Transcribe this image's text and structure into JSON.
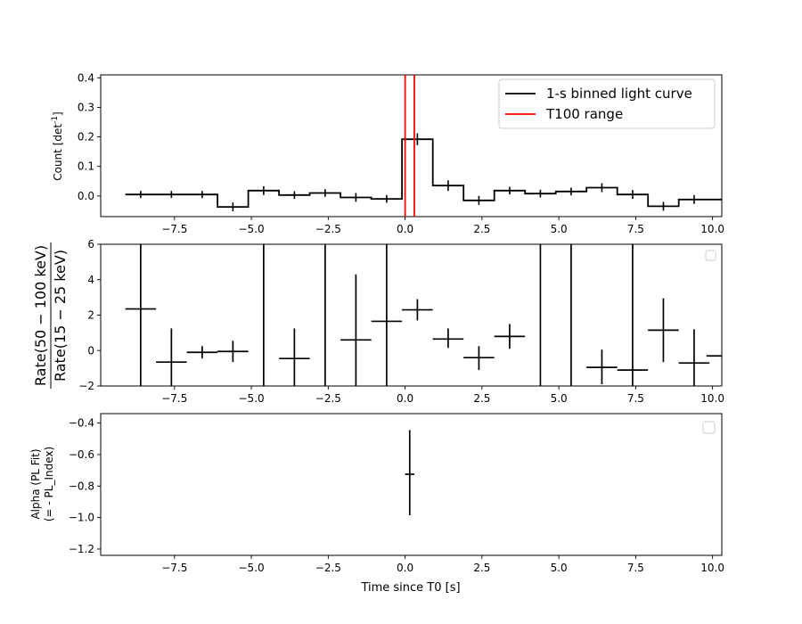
{
  "chart_data": [
    {
      "type": "line",
      "panel": "top",
      "ylabel": "Count [det",
      "ylabel_sup": "-1",
      "ylabel_end": "]",
      "xlim": [
        -9.9,
        10.3
      ],
      "ylim": [
        -0.07,
        0.41
      ],
      "xticks": [
        -7.5,
        -5.0,
        -2.5,
        0.0,
        2.5,
        5.0,
        7.5,
        10.0
      ],
      "xtick_labels": [
        "−7.5",
        "−5.0",
        "−2.5",
        "0.0",
        "2.5",
        "5.0",
        "7.5",
        "10.0"
      ],
      "yticks": [
        0.0,
        0.1,
        0.2,
        0.3,
        0.4
      ],
      "ytick_labels": [
        "0.0",
        "0.1",
        "0.2",
        "0.3",
        "0.4"
      ],
      "legend_position": "top-right",
      "series": [
        {
          "name": "1-s binned light curve",
          "color": "#000000",
          "bin_edges": [
            -9.1,
            -8.1,
            -7.1,
            -6.1,
            -5.1,
            -4.1,
            -3.1,
            -2.1,
            -1.1,
            -0.1,
            0.9,
            1.9,
            2.9,
            3.9,
            4.9,
            5.9,
            6.9,
            7.9,
            8.9,
            9.9,
            10.9
          ],
          "values": [
            0.005,
            0.005,
            0.005,
            -0.037,
            0.018,
            0.003,
            0.01,
            -0.005,
            -0.01,
            0.192,
            0.035,
            -0.015,
            0.018,
            0.008,
            0.015,
            0.028,
            0.005,
            -0.035,
            -0.012,
            -0.012
          ],
          "errors": [
            0.012,
            0.012,
            0.012,
            0.015,
            0.015,
            0.013,
            0.013,
            0.015,
            0.013,
            0.02,
            0.018,
            0.015,
            0.013,
            0.013,
            0.013,
            0.015,
            0.015,
            0.015,
            0.015,
            0.015
          ]
        },
        {
          "name": "T100 range",
          "color": "#ff0000",
          "vlines": [
            0.0,
            0.3
          ]
        }
      ]
    },
    {
      "type": "scatter",
      "panel": "middle",
      "ylabel_num": "Rate(50 − 100 keV)",
      "ylabel_den": "Rate(15 − 25 keV)",
      "xlim": [
        -9.9,
        10.3
      ],
      "ylim": [
        -2,
        6
      ],
      "xticks": [
        -7.5,
        -5.0,
        -2.5,
        0.0,
        2.5,
        5.0,
        7.5,
        10.0
      ],
      "xtick_labels": [
        "−7.5",
        "−5.0",
        "−2.5",
        "0.0",
        "2.5",
        "5.0",
        "7.5",
        "10.0"
      ],
      "yticks": [
        -2,
        0,
        2,
        4,
        6
      ],
      "ytick_labels": [
        "−2",
        "0",
        "2",
        "4",
        "6"
      ],
      "points": [
        {
          "x": -8.6,
          "y": 2.35,
          "xerr": 0.5,
          "ylo": -2.0,
          "yhi": 6.0
        },
        {
          "x": -7.6,
          "y": -0.65,
          "xerr": 0.5,
          "ylo": -2.0,
          "yhi": 1.25
        },
        {
          "x": -6.6,
          "y": -0.1,
          "xerr": 0.5,
          "ylo": -0.45,
          "yhi": 0.25
        },
        {
          "x": -5.6,
          "y": -0.05,
          "xerr": 0.5,
          "ylo": -0.65,
          "yhi": 0.55
        },
        {
          "x": -4.6,
          "y": null,
          "xerr": 0,
          "ylo": -2.0,
          "yhi": 6.0
        },
        {
          "x": -3.6,
          "y": -0.45,
          "xerr": 0.5,
          "ylo": -2.0,
          "yhi": 1.25
        },
        {
          "x": -2.6,
          "y": null,
          "xerr": 0,
          "ylo": -2.0,
          "yhi": 6.0
        },
        {
          "x": -1.6,
          "y": 0.6,
          "xerr": 0.5,
          "ylo": -2.0,
          "yhi": 4.3
        },
        {
          "x": -0.6,
          "y": 1.65,
          "xerr": 0.5,
          "ylo": -2.0,
          "yhi": 6.0
        },
        {
          "x": 0.4,
          "y": 2.3,
          "xerr": 0.5,
          "ylo": 1.7,
          "yhi": 2.9
        },
        {
          "x": 1.4,
          "y": 0.65,
          "xerr": 0.5,
          "ylo": 0.15,
          "yhi": 1.25
        },
        {
          "x": 2.4,
          "y": -0.4,
          "xerr": 0.5,
          "ylo": -1.1,
          "yhi": 0.25
        },
        {
          "x": 3.4,
          "y": 0.8,
          "xerr": 0.5,
          "ylo": 0.1,
          "yhi": 1.5
        },
        {
          "x": 4.4,
          "y": null,
          "xerr": 0,
          "ylo": -2.0,
          "yhi": 6.0
        },
        {
          "x": 5.4,
          "y": null,
          "xerr": 0,
          "ylo": -2.0,
          "yhi": 6.0
        },
        {
          "x": 6.4,
          "y": -0.95,
          "xerr": 0.5,
          "ylo": -1.9,
          "yhi": 0.05
        },
        {
          "x": 7.4,
          "y": -1.1,
          "xerr": 0.5,
          "ylo": -2.0,
          "yhi": 6.0
        },
        {
          "x": 8.4,
          "y": 1.15,
          "xerr": 0.5,
          "ylo": -0.65,
          "yhi": 2.95
        },
        {
          "x": 9.4,
          "y": -0.7,
          "xerr": 0.5,
          "ylo": -2.0,
          "yhi": 1.2
        },
        {
          "x": 10.3,
          "y": -0.3,
          "xerr": 0.5,
          "ylo": -0.3,
          "yhi": -0.3
        }
      ]
    },
    {
      "type": "scatter",
      "panel": "bottom",
      "ylabel_line1": "Alpha (PL Fit)",
      "ylabel_line2": "(= - PL_Index)",
      "xlabel": "Time since T0 [s]",
      "xlim": [
        -9.9,
        10.3
      ],
      "ylim": [
        -1.24,
        -0.34
      ],
      "xticks": [
        -7.5,
        -5.0,
        -2.5,
        0.0,
        2.5,
        5.0,
        7.5,
        10.0
      ],
      "xtick_labels": [
        "−7.5",
        "−5.0",
        "−2.5",
        "0.0",
        "2.5",
        "5.0",
        "7.5",
        "10.0"
      ],
      "yticks": [
        -1.2,
        -1.0,
        -0.8,
        -0.6,
        -0.4
      ],
      "ytick_labels": [
        "−1.2",
        "−1.0",
        "−0.8",
        "−0.6",
        "−0.4"
      ],
      "points": [
        {
          "x": 0.15,
          "y": -0.725,
          "xerr": 0.15,
          "ylo": -0.985,
          "yhi": -0.445
        }
      ]
    }
  ]
}
